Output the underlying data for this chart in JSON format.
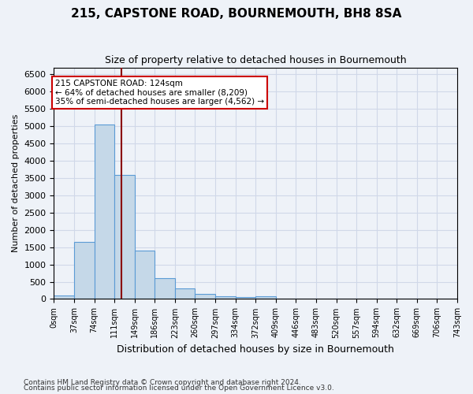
{
  "title": "215, CAPSTONE ROAD, BOURNEMOUTH, BH8 8SA",
  "subtitle": "Size of property relative to detached houses in Bournemouth",
  "xlabel": "Distribution of detached houses by size in Bournemouth",
  "ylabel": "Number of detached properties",
  "bin_labels": [
    "0sqm",
    "37sqm",
    "74sqm",
    "111sqm",
    "149sqm",
    "186sqm",
    "223sqm",
    "260sqm",
    "297sqm",
    "334sqm",
    "372sqm",
    "409sqm",
    "446sqm",
    "483sqm",
    "520sqm",
    "557sqm",
    "594sqm",
    "632sqm",
    "669sqm",
    "706sqm",
    "743sqm"
  ],
  "bar_heights": [
    100,
    1650,
    5050,
    3600,
    1400,
    600,
    300,
    150,
    75,
    50,
    75,
    0,
    0,
    0,
    0,
    0,
    0,
    0,
    0,
    0
  ],
  "bar_color": "#c5d8e8",
  "bar_edge_color": "#5b9bd5",
  "ylim": [
    0,
    6700
  ],
  "property_size_sqm": 124,
  "vline_color": "#8b0000",
  "annotation_text": "215 CAPSTONE ROAD: 124sqm\n← 64% of detached houses are smaller (8,209)\n35% of semi-detached houses are larger (4,562) →",
  "annotation_box_color": "#ffffff",
  "annotation_box_edge_color": "#cc0000",
  "footnote1": "Contains HM Land Registry data © Crown copyright and database right 2024.",
  "footnote2": "Contains public sector information licensed under the Open Government Licence v3.0.",
  "grid_color": "#d0d8e8",
  "background_color": "#eef2f8"
}
